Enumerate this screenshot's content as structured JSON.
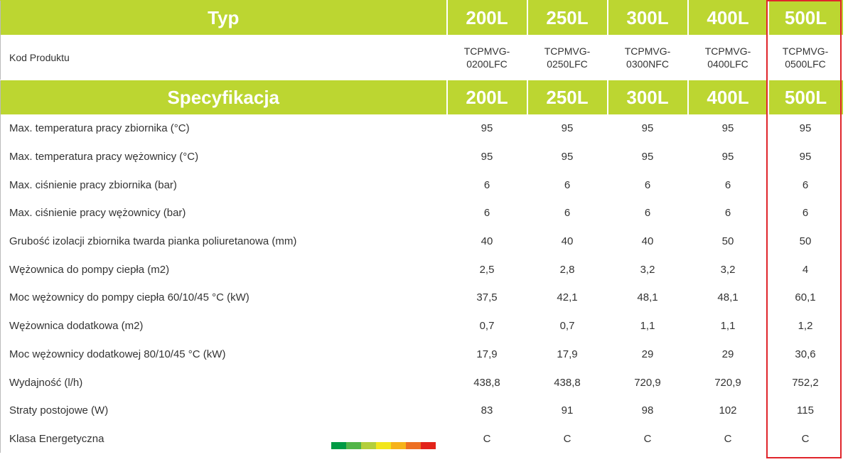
{
  "header": {
    "type_label": "Typ",
    "spec_label": "Specyfikacja",
    "columns": [
      "200L",
      "250L",
      "300L",
      "400L",
      "500L"
    ]
  },
  "product_code": {
    "label": "Kod Produktu",
    "values": [
      [
        "TCPMVG-",
        "0200LFC"
      ],
      [
        "TCPMVG-",
        "0250LFC"
      ],
      [
        "TCPMVG-",
        "0300NFC"
      ],
      [
        "TCPMVG-",
        "0400LFC"
      ],
      [
        "TCPMVG-",
        "0500LFC"
      ]
    ]
  },
  "rows": [
    {
      "label": "Max. temperatura pracy zbiornika (°C)",
      "values": [
        "95",
        "95",
        "95",
        "95",
        "95"
      ]
    },
    {
      "label": "Max. temperatura pracy wężownicy (°C)",
      "values": [
        "95",
        "95",
        "95",
        "95",
        "95"
      ]
    },
    {
      "label": "Max. ciśnienie pracy zbiornika (bar)",
      "values": [
        "6",
        "6",
        "6",
        "6",
        "6"
      ]
    },
    {
      "label": "Max. ciśnienie pracy wężownicy (bar)",
      "values": [
        "6",
        "6",
        "6",
        "6",
        "6"
      ]
    },
    {
      "label": "Grubość izolacji zbiornika twarda pianka poliuretanowa  (mm)",
      "values": [
        "40",
        "40",
        "40",
        "50",
        "50"
      ]
    },
    {
      "label": "Wężownica do pompy ciepła (m2)",
      "values": [
        "2,5",
        "2,8",
        "3,2",
        "3,2",
        "4"
      ]
    },
    {
      "label": "Moc wężownicy do pompy ciepła  60/10/45 °C (kW)",
      "values": [
        "37,5",
        "42,1",
        "48,1",
        "48,1",
        "60,1"
      ]
    },
    {
      "label": "Wężownica dodatkowa (m2)",
      "values": [
        "0,7",
        "0,7",
        "1,1",
        "1,1",
        "1,2"
      ]
    },
    {
      "label": "Moc wężownicy dodatkowej 80/10/45 °C (kW)",
      "values": [
        "17,9",
        "17,9",
        "29",
        "29",
        "30,6"
      ]
    },
    {
      "label": "Wydajność (l/h)",
      "values": [
        "438,8",
        "438,8",
        "720,9",
        "720,9",
        "752,2"
      ]
    },
    {
      "label": "Straty postojowe (W)",
      "values": [
        "83",
        "91",
        "98",
        "102",
        "115"
      ]
    },
    {
      "label": "Klasa Energetyczna",
      "values": [
        "C",
        "C",
        "C",
        "C",
        "C"
      ]
    }
  ],
  "energy_scale_colors": [
    "#009a44",
    "#52b548",
    "#b3cf3b",
    "#f2e61c",
    "#f6b21a",
    "#ed6f22",
    "#e2231a"
  ],
  "colors": {
    "header_green": "#bcd631",
    "highlight_red": "#e0252b"
  }
}
